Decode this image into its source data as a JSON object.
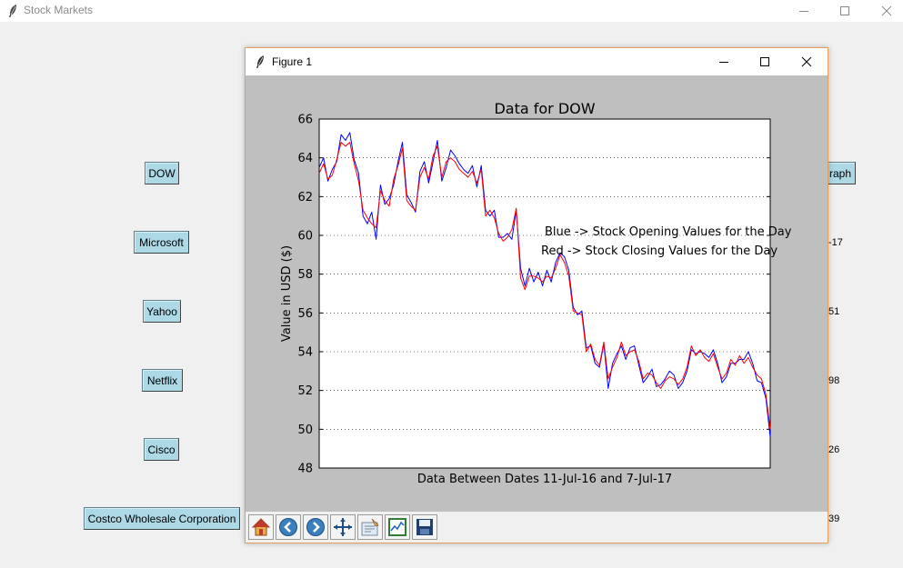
{
  "window": {
    "title": "Stock Markets",
    "minimize": "minimize",
    "maximize": "maximize",
    "close": "close"
  },
  "stocks": {
    "buttons": [
      "DOW",
      "Microsoft",
      "Yahoo",
      "Netflix",
      "Cisco",
      "Costco Wholesale Corporation"
    ]
  },
  "right_panel": {
    "graph_button": "raph",
    "labels": [
      "-17",
      "51",
      "98",
      "26",
      "39"
    ]
  },
  "figure": {
    "title": "Figure 1"
  },
  "legend_text": {
    "line1": "Blue -> Stock Opening Values for the Day",
    "line2": "Red -> Stock Closing Values for the Day"
  },
  "toolbar": {
    "buttons": [
      "home-icon",
      "back-arrow-icon",
      "forward-arrow-icon",
      "pan-icon",
      "subplots-config-icon",
      "zoom-rect-icon",
      "save-icon"
    ]
  },
  "colors": {
    "button_bg": "#add8e6",
    "opening_line": "#0000ff",
    "closing_line": "#ff0000",
    "canvas_bg": "#bfbfbf"
  },
  "chart_data": {
    "type": "line",
    "title": "Data for DOW",
    "xlabel": "Data Between Dates 11-Jul-16 and 7-Jul-17",
    "ylabel": "Value in USD ($)",
    "ylim": [
      48,
      66
    ],
    "yticks": [
      48,
      50,
      52,
      54,
      56,
      58,
      60,
      62,
      64,
      66
    ],
    "grid": "horizontal dotted",
    "x_points": 104,
    "series": [
      {
        "color": "#0000ff",
        "values": [
          63.5,
          64.0,
          62.8,
          63.4,
          63.8,
          65.2,
          64.9,
          65.3,
          63.9,
          63.2,
          61.0,
          60.6,
          61.2,
          59.8,
          62.6,
          61.6,
          61.9,
          62.6,
          63.8,
          64.8,
          62.1,
          61.7,
          61.2,
          63.3,
          63.8,
          62.7,
          63.8,
          64.9,
          62.8,
          63.5,
          64.4,
          64.1,
          63.7,
          63.4,
          63.2,
          63.6,
          62.5,
          63.6,
          61.3,
          61.0,
          61.3,
          59.9,
          59.9,
          60.1,
          59.8,
          61.3,
          58.3,
          57.4,
          58.3,
          57.6,
          58.1,
          57.4,
          58.2,
          57.6,
          58.6,
          59.1,
          58.9,
          58.2,
          56.3,
          55.9,
          56.1,
          54.2,
          54.3,
          53.4,
          53.2,
          54.4,
          52.1,
          53.4,
          53.9,
          54.3,
          53.6,
          54.2,
          54.3,
          53.3,
          52.4,
          52.7,
          53.1,
          52.2,
          52.3,
          52.6,
          53.0,
          52.8,
          52.1,
          52.4,
          53.0,
          54.1,
          53.9,
          54.0,
          53.9,
          53.7,
          54.1,
          53.4,
          52.4,
          52.7,
          53.4,
          53.4,
          53.6,
          53.6,
          54.0,
          53.4,
          52.5,
          52.4,
          51.6,
          49.6
        ]
      },
      {
        "color": "#ff0000",
        "values": [
          63.2,
          63.7,
          62.9,
          63.1,
          63.9,
          64.8,
          64.6,
          64.8,
          63.7,
          62.8,
          61.3,
          60.9,
          60.6,
          60.4,
          62.3,
          61.8,
          61.5,
          62.9,
          63.6,
          64.5,
          61.8,
          61.5,
          61.3,
          63.0,
          63.5,
          62.9,
          64.1,
          64.6,
          63.0,
          63.8,
          64.0,
          63.8,
          63.4,
          63.2,
          63.0,
          63.3,
          62.7,
          63.4,
          61.0,
          61.3,
          60.9,
          60.1,
          59.7,
          59.9,
          60.3,
          61.4,
          57.8,
          57.2,
          57.9,
          57.9,
          57.8,
          57.6,
          57.9,
          57.8,
          58.3,
          59.0,
          58.6,
          57.9,
          56.1,
          56.0,
          55.9,
          54.0,
          54.4,
          53.6,
          53.3,
          54.5,
          52.6,
          53.2,
          53.7,
          54.5,
          53.8,
          54.0,
          54.1,
          53.5,
          52.6,
          52.9,
          52.8,
          52.4,
          52.1,
          52.5,
          52.7,
          52.6,
          52.3,
          52.6,
          53.2,
          54.3,
          53.8,
          54.1,
          53.7,
          53.5,
          53.9,
          53.2,
          52.6,
          52.9,
          53.6,
          53.3,
          53.8,
          53.4,
          53.7,
          53.2,
          52.8,
          52.6,
          51.8,
          50.0
        ]
      }
    ]
  }
}
